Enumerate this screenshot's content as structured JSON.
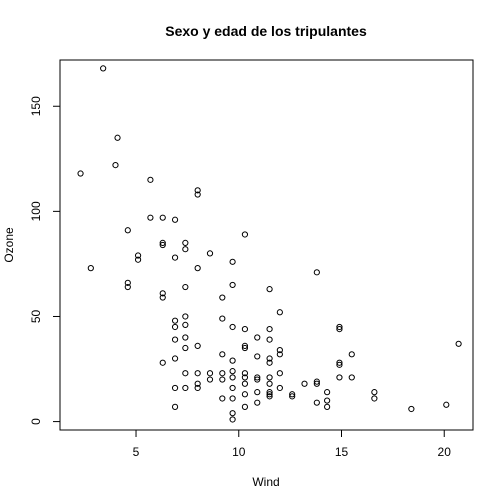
{
  "chart_data": {
    "type": "scatter",
    "title": "Sexo y edad de los tripulantes",
    "xlabel": "Wind",
    "ylabel": "Ozone",
    "xlim": [
      1.3,
      21.4
    ],
    "ylim": [
      -4,
      172
    ],
    "xticks": [
      5,
      10,
      15,
      20
    ],
    "yticks": [
      0,
      50,
      100,
      150
    ],
    "grid": false,
    "points": [
      [
        2.3,
        118
      ],
      [
        2.8,
        73
      ],
      [
        3.4,
        168
      ],
      [
        4.0,
        122
      ],
      [
        4.1,
        135
      ],
      [
        4.6,
        91
      ],
      [
        4.6,
        66
      ],
      [
        4.6,
        64
      ],
      [
        5.1,
        79
      ],
      [
        5.1,
        77
      ],
      [
        5.7,
        115
      ],
      [
        5.7,
        97
      ],
      [
        6.3,
        97
      ],
      [
        6.3,
        85
      ],
      [
        6.3,
        84
      ],
      [
        6.3,
        61
      ],
      [
        6.3,
        59
      ],
      [
        6.3,
        28
      ],
      [
        6.9,
        96
      ],
      [
        6.9,
        78
      ],
      [
        6.9,
        48
      ],
      [
        6.9,
        45
      ],
      [
        6.9,
        39
      ],
      [
        6.9,
        30
      ],
      [
        6.9,
        16
      ],
      [
        6.9,
        7
      ],
      [
        7.4,
        85
      ],
      [
        7.4,
        82
      ],
      [
        7.4,
        64
      ],
      [
        7.4,
        50
      ],
      [
        7.4,
        46
      ],
      [
        7.4,
        40
      ],
      [
        7.4,
        35
      ],
      [
        7.4,
        23
      ],
      [
        7.4,
        16
      ],
      [
        8.0,
        110
      ],
      [
        8.0,
        108
      ],
      [
        8.0,
        73
      ],
      [
        8.0,
        36
      ],
      [
        8.0,
        23
      ],
      [
        8.0,
        18
      ],
      [
        8.0,
        16
      ],
      [
        8.6,
        80
      ],
      [
        8.6,
        23
      ],
      [
        8.6,
        20
      ],
      [
        9.2,
        59
      ],
      [
        9.2,
        49
      ],
      [
        9.2,
        32
      ],
      [
        9.2,
        23
      ],
      [
        9.2,
        20
      ],
      [
        9.2,
        11
      ],
      [
        9.7,
        76
      ],
      [
        9.7,
        65
      ],
      [
        9.7,
        45
      ],
      [
        9.7,
        29
      ],
      [
        9.7,
        24
      ],
      [
        9.7,
        21
      ],
      [
        9.7,
        16
      ],
      [
        9.7,
        11
      ],
      [
        9.7,
        4
      ],
      [
        9.7,
        1
      ],
      [
        10.3,
        89
      ],
      [
        10.3,
        44
      ],
      [
        10.3,
        36
      ],
      [
        10.3,
        35
      ],
      [
        10.3,
        23
      ],
      [
        10.3,
        21
      ],
      [
        10.3,
        18
      ],
      [
        10.3,
        13
      ],
      [
        10.3,
        7
      ],
      [
        10.9,
        40
      ],
      [
        10.9,
        31
      ],
      [
        10.9,
        21
      ],
      [
        10.9,
        20
      ],
      [
        10.9,
        14
      ],
      [
        10.9,
        9
      ],
      [
        11.5,
        63
      ],
      [
        11.5,
        44
      ],
      [
        11.5,
        39
      ],
      [
        11.5,
        30
      ],
      [
        11.5,
        28
      ],
      [
        11.5,
        21
      ],
      [
        11.5,
        18
      ],
      [
        11.5,
        14
      ],
      [
        11.5,
        13
      ],
      [
        11.5,
        12
      ],
      [
        12.0,
        52
      ],
      [
        12.0,
        34
      ],
      [
        12.0,
        32
      ],
      [
        12.0,
        23
      ],
      [
        12.0,
        16
      ],
      [
        12.6,
        13
      ],
      [
        12.6,
        12
      ],
      [
        13.2,
        18
      ],
      [
        13.8,
        71
      ],
      [
        13.8,
        19
      ],
      [
        13.8,
        18
      ],
      [
        13.8,
        9
      ],
      [
        14.3,
        14
      ],
      [
        14.3,
        10
      ],
      [
        14.3,
        7
      ],
      [
        14.9,
        45
      ],
      [
        14.9,
        44
      ],
      [
        14.9,
        28
      ],
      [
        14.9,
        27
      ],
      [
        14.9,
        21
      ],
      [
        15.5,
        32
      ],
      [
        15.5,
        21
      ],
      [
        16.6,
        14
      ],
      [
        16.6,
        11
      ],
      [
        18.4,
        6
      ],
      [
        20.1,
        8
      ],
      [
        20.7,
        37
      ]
    ]
  }
}
